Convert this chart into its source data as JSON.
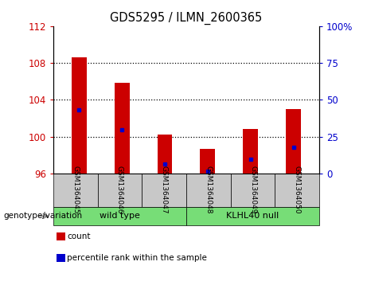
{
  "title": "GDS5295 / ILMN_2600365",
  "samples": [
    "GSM1364045",
    "GSM1364046",
    "GSM1364047",
    "GSM1364048",
    "GSM1364049",
    "GSM1364050"
  ],
  "red_bar_tops": [
    108.6,
    105.8,
    100.2,
    98.7,
    100.8,
    103.0
  ],
  "blue_marker_vals": [
    102.9,
    100.7,
    97.0,
    96.2,
    97.5,
    98.8
  ],
  "bar_base": 96,
  "left_ylim": [
    96,
    112
  ],
  "left_yticks": [
    96,
    100,
    104,
    108,
    112
  ],
  "right_ylim": [
    0,
    100
  ],
  "right_yticks": [
    0,
    25,
    50,
    75,
    100
  ],
  "right_yticklabels": [
    "0",
    "25",
    "50",
    "75",
    "100%"
  ],
  "red_color": "#cc0000",
  "blue_color": "#0000cc",
  "bar_width": 0.35,
  "groups": [
    {
      "label": "wild type",
      "indices": [
        0,
        1,
        2
      ],
      "color": "#77dd77"
    },
    {
      "label": "KLHL40 null",
      "indices": [
        3,
        4,
        5
      ],
      "color": "#77dd77"
    }
  ],
  "genotype_label": "genotype/variation",
  "legend_items": [
    {
      "label": "count",
      "color": "#cc0000"
    },
    {
      "label": "percentile rank within the sample",
      "color": "#0000cc"
    }
  ],
  "grid_color": "#000000",
  "tick_color_left": "#cc0000",
  "tick_color_right": "#0000cc",
  "sample_box_color": "#c8c8c8",
  "plot_bg": "#ffffff"
}
